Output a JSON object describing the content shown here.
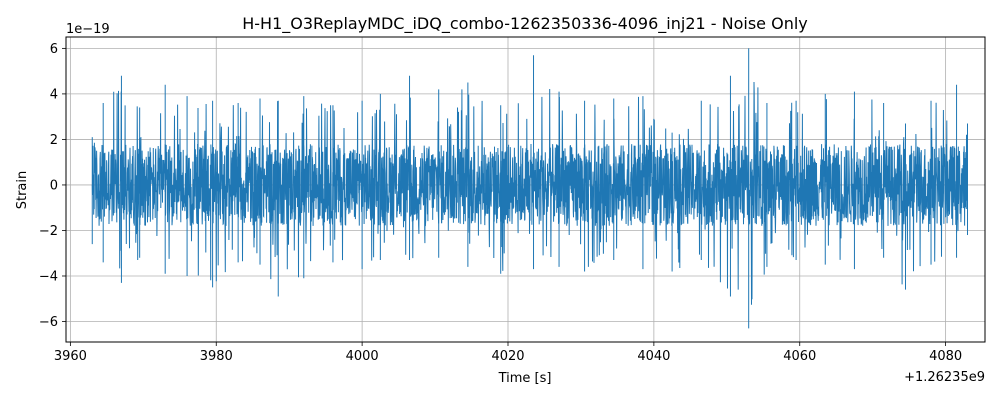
{
  "chart_data": {
    "type": "line",
    "title": "H-H1_O3ReplayMDC_iDQ_combo-1262350336-4096_inj21 - Noise Only",
    "xlabel": "Time [s]",
    "ylabel": "Strain",
    "x_offset_label": "+1.26235e9",
    "y_scale_label": "1e−19",
    "xlim": [
      3959.4,
      4085.4
    ],
    "ylim": [
      -6.9,
      6.5
    ],
    "x_ticks": [
      3960,
      3980,
      4000,
      4020,
      4040,
      4060,
      4080
    ],
    "x_tick_labels": [
      "3960",
      "3980",
      "4000",
      "4020",
      "4040",
      "4060",
      "4080"
    ],
    "y_ticks": [
      -6,
      -4,
      -2,
      0,
      2,
      4,
      6
    ],
    "y_tick_labels": [
      "−6",
      "−4",
      "−2",
      "0",
      "2",
      "4",
      "6"
    ],
    "grid": true,
    "line_color": "#1f77b4",
    "series": [
      {
        "x_start": 3963,
        "x_end": 4083,
        "band_max": 1.8,
        "band_min": -1.8,
        "envelope": [
          {
            "x": 3963.0,
            "max": 2.1,
            "min": -2.6
          },
          {
            "x": 3964.5,
            "max": 3.6,
            "min": -3.4
          },
          {
            "x": 3967.0,
            "max": 4.8,
            "min": -4.3
          },
          {
            "x": 3969.5,
            "max": 3.4,
            "min": -3.2
          },
          {
            "x": 3973.0,
            "max": 4.4,
            "min": -3.9
          },
          {
            "x": 3976.0,
            "max": 3.9,
            "min": -4.0
          },
          {
            "x": 3979.5,
            "max": 3.7,
            "min": -4.5
          },
          {
            "x": 3983.0,
            "max": 3.6,
            "min": -3.4
          },
          {
            "x": 3986.0,
            "max": 3.8,
            "min": -3.5
          },
          {
            "x": 3988.5,
            "max": 3.7,
            "min": -4.9
          },
          {
            "x": 3992.0,
            "max": 3.9,
            "min": -4.1
          },
          {
            "x": 3996.0,
            "max": 3.5,
            "min": -3.4
          },
          {
            "x": 4000.0,
            "max": 3.7,
            "min": -3.7
          },
          {
            "x": 4002.5,
            "max": 4.0,
            "min": -3.3
          },
          {
            "x": 4006.5,
            "max": 4.8,
            "min": -3.3
          },
          {
            "x": 4010.5,
            "max": 4.2,
            "min": -3.2
          },
          {
            "x": 4014.5,
            "max": 4.5,
            "min": -3.6
          },
          {
            "x": 4019.0,
            "max": 3.5,
            "min": -3.9
          },
          {
            "x": 4023.5,
            "max": 5.7,
            "min": -3.7
          },
          {
            "x": 4027.0,
            "max": 4.1,
            "min": -3.6
          },
          {
            "x": 4030.5,
            "max": 3.7,
            "min": -3.8
          },
          {
            "x": 4034.5,
            "max": 3.8,
            "min": -3.3
          },
          {
            "x": 4038.5,
            "max": 3.9,
            "min": -3.7
          },
          {
            "x": 4042.5,
            "max": 2.3,
            "min": -3.8
          },
          {
            "x": 4046.5,
            "max": 3.7,
            "min": -3.3
          },
          {
            "x": 4050.5,
            "max": 4.8,
            "min": -4.9
          },
          {
            "x": 4053.0,
            "max": 6.0,
            "min": -6.3
          },
          {
            "x": 4055.5,
            "max": 3.6,
            "min": -3.6
          },
          {
            "x": 4059.5,
            "max": 3.7,
            "min": -3.3
          },
          {
            "x": 4063.5,
            "max": 4.0,
            "min": -3.5
          },
          {
            "x": 4067.5,
            "max": 4.1,
            "min": -3.7
          },
          {
            "x": 4071.5,
            "max": 3.6,
            "min": -3.2
          },
          {
            "x": 4074.5,
            "max": 2.7,
            "min": -4.6
          },
          {
            "x": 4078.0,
            "max": 3.7,
            "min": -3.5
          },
          {
            "x": 4081.5,
            "max": 4.4,
            "min": -3.2
          },
          {
            "x": 4083.0,
            "max": 2.7,
            "min": -2.2
          }
        ]
      }
    ]
  }
}
